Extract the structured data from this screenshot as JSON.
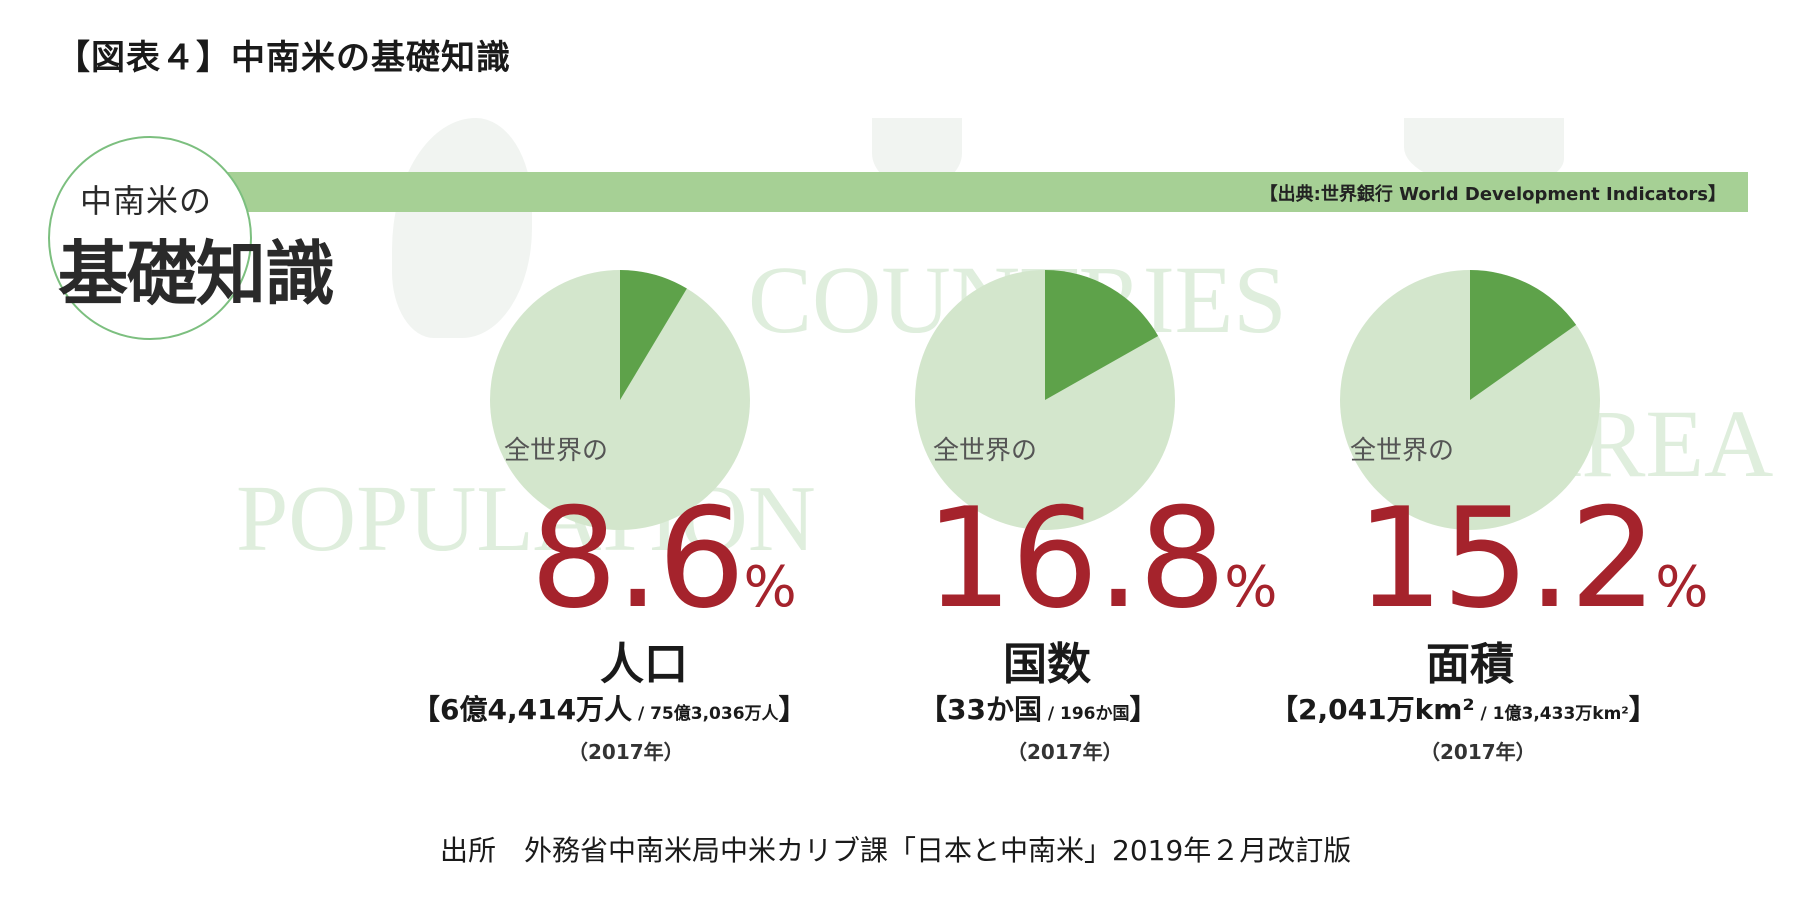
{
  "title": "【図表４】中南米の基礎知識",
  "emblem": {
    "sub": "中南米の",
    "main": "基礎知識"
  },
  "source_top": "【出典:世界銀行 World Development Indicators】",
  "footer": "出所　外務省中南米局中米カリブ課「日本と中南米」2019年２月改訂版",
  "colors": {
    "pie_bg": "#d3e6cc",
    "pie_slice": "#5ea24a",
    "band": "#a6d095",
    "number": "#a5232c"
  },
  "chart_data": [
    {
      "type": "pie",
      "name": "population",
      "background_word": "POPULATION",
      "caption": "全世界の",
      "value": 8.6,
      "value_text": "8.6",
      "unit": "%",
      "label": "人口",
      "detail_main": "【6億4,414万人",
      "detail_small": " / 75億3,036万人",
      "detail_end": "】",
      "year": "（2017年）"
    },
    {
      "type": "pie",
      "name": "countries",
      "background_word": "COUNTRIES",
      "caption": "全世界の",
      "value": 16.8,
      "value_text": "16.8",
      "unit": "%",
      "label": "国数",
      "detail_main": "【33か国",
      "detail_small": " / 196か国",
      "detail_end": "】",
      "year": "（2017年）"
    },
    {
      "type": "pie",
      "name": "area",
      "background_word": "AREA",
      "caption": "全世界の",
      "value": 15.2,
      "value_text": "15.2",
      "unit": "%",
      "label": "面積",
      "detail_main": "【2,041万km²",
      "detail_small": " / 1億3,433万km²",
      "detail_end": "】",
      "year": "（2017年）"
    }
  ]
}
